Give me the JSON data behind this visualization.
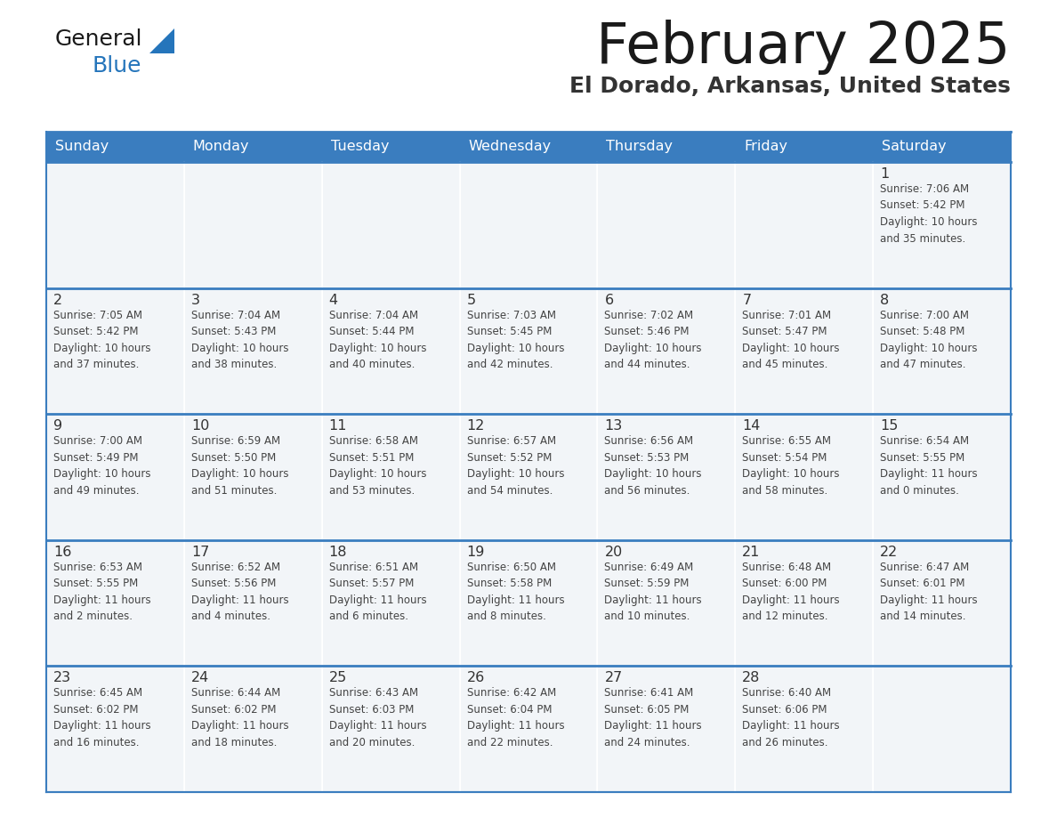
{
  "title": "February 2025",
  "subtitle": "El Dorado, Arkansas, United States",
  "header_color": "#3a7dbf",
  "header_text_color": "#ffffff",
  "days_of_week": [
    "Sunday",
    "Monday",
    "Tuesday",
    "Wednesday",
    "Thursday",
    "Friday",
    "Saturday"
  ],
  "cell_bg_color": "#f2f5f8",
  "border_color": "#3a7dbf",
  "row_divider_color": "#3a7dbf",
  "day_num_color": "#333333",
  "info_color": "#444444",
  "title_color": "#1a1a1a",
  "subtitle_color": "#333333",
  "logo_general_color": "#1a1a1a",
  "logo_blue_color": "#2575bb",
  "logo_triangle_color": "#2575bb",
  "calendar_data": [
    [
      {
        "day": null,
        "info": ""
      },
      {
        "day": null,
        "info": ""
      },
      {
        "day": null,
        "info": ""
      },
      {
        "day": null,
        "info": ""
      },
      {
        "day": null,
        "info": ""
      },
      {
        "day": null,
        "info": ""
      },
      {
        "day": 1,
        "info": "Sunrise: 7:06 AM\nSunset: 5:42 PM\nDaylight: 10 hours\nand 35 minutes."
      }
    ],
    [
      {
        "day": 2,
        "info": "Sunrise: 7:05 AM\nSunset: 5:42 PM\nDaylight: 10 hours\nand 37 minutes."
      },
      {
        "day": 3,
        "info": "Sunrise: 7:04 AM\nSunset: 5:43 PM\nDaylight: 10 hours\nand 38 minutes."
      },
      {
        "day": 4,
        "info": "Sunrise: 7:04 AM\nSunset: 5:44 PM\nDaylight: 10 hours\nand 40 minutes."
      },
      {
        "day": 5,
        "info": "Sunrise: 7:03 AM\nSunset: 5:45 PM\nDaylight: 10 hours\nand 42 minutes."
      },
      {
        "day": 6,
        "info": "Sunrise: 7:02 AM\nSunset: 5:46 PM\nDaylight: 10 hours\nand 44 minutes."
      },
      {
        "day": 7,
        "info": "Sunrise: 7:01 AM\nSunset: 5:47 PM\nDaylight: 10 hours\nand 45 minutes."
      },
      {
        "day": 8,
        "info": "Sunrise: 7:00 AM\nSunset: 5:48 PM\nDaylight: 10 hours\nand 47 minutes."
      }
    ],
    [
      {
        "day": 9,
        "info": "Sunrise: 7:00 AM\nSunset: 5:49 PM\nDaylight: 10 hours\nand 49 minutes."
      },
      {
        "day": 10,
        "info": "Sunrise: 6:59 AM\nSunset: 5:50 PM\nDaylight: 10 hours\nand 51 minutes."
      },
      {
        "day": 11,
        "info": "Sunrise: 6:58 AM\nSunset: 5:51 PM\nDaylight: 10 hours\nand 53 minutes."
      },
      {
        "day": 12,
        "info": "Sunrise: 6:57 AM\nSunset: 5:52 PM\nDaylight: 10 hours\nand 54 minutes."
      },
      {
        "day": 13,
        "info": "Sunrise: 6:56 AM\nSunset: 5:53 PM\nDaylight: 10 hours\nand 56 minutes."
      },
      {
        "day": 14,
        "info": "Sunrise: 6:55 AM\nSunset: 5:54 PM\nDaylight: 10 hours\nand 58 minutes."
      },
      {
        "day": 15,
        "info": "Sunrise: 6:54 AM\nSunset: 5:55 PM\nDaylight: 11 hours\nand 0 minutes."
      }
    ],
    [
      {
        "day": 16,
        "info": "Sunrise: 6:53 AM\nSunset: 5:55 PM\nDaylight: 11 hours\nand 2 minutes."
      },
      {
        "day": 17,
        "info": "Sunrise: 6:52 AM\nSunset: 5:56 PM\nDaylight: 11 hours\nand 4 minutes."
      },
      {
        "day": 18,
        "info": "Sunrise: 6:51 AM\nSunset: 5:57 PM\nDaylight: 11 hours\nand 6 minutes."
      },
      {
        "day": 19,
        "info": "Sunrise: 6:50 AM\nSunset: 5:58 PM\nDaylight: 11 hours\nand 8 minutes."
      },
      {
        "day": 20,
        "info": "Sunrise: 6:49 AM\nSunset: 5:59 PM\nDaylight: 11 hours\nand 10 minutes."
      },
      {
        "day": 21,
        "info": "Sunrise: 6:48 AM\nSunset: 6:00 PM\nDaylight: 11 hours\nand 12 minutes."
      },
      {
        "day": 22,
        "info": "Sunrise: 6:47 AM\nSunset: 6:01 PM\nDaylight: 11 hours\nand 14 minutes."
      }
    ],
    [
      {
        "day": 23,
        "info": "Sunrise: 6:45 AM\nSunset: 6:02 PM\nDaylight: 11 hours\nand 16 minutes."
      },
      {
        "day": 24,
        "info": "Sunrise: 6:44 AM\nSunset: 6:02 PM\nDaylight: 11 hours\nand 18 minutes."
      },
      {
        "day": 25,
        "info": "Sunrise: 6:43 AM\nSunset: 6:03 PM\nDaylight: 11 hours\nand 20 minutes."
      },
      {
        "day": 26,
        "info": "Sunrise: 6:42 AM\nSunset: 6:04 PM\nDaylight: 11 hours\nand 22 minutes."
      },
      {
        "day": 27,
        "info": "Sunrise: 6:41 AM\nSunset: 6:05 PM\nDaylight: 11 hours\nand 24 minutes."
      },
      {
        "day": 28,
        "info": "Sunrise: 6:40 AM\nSunset: 6:06 PM\nDaylight: 11 hours\nand 26 minutes."
      },
      {
        "day": null,
        "info": ""
      }
    ]
  ]
}
